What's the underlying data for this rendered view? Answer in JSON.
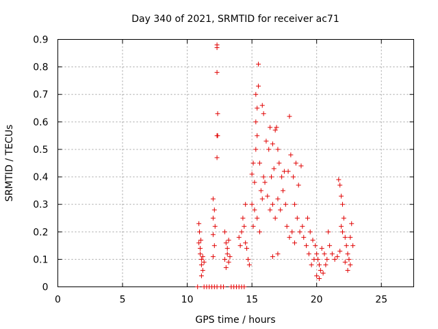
{
  "chart_data": {
    "type": "scatter",
    "title": "Day 340 of 2021, SRMTID for receiver ac71",
    "xlabel": "GPS time / hours",
    "ylabel": "SRMTID / TECUs",
    "xlim": [
      0,
      27.5
    ],
    "ylim": [
      0,
      0.9
    ],
    "xticks": [
      "0",
      "5",
      "10",
      "15",
      "20",
      "25"
    ],
    "yticks": [
      "0",
      "0.1",
      "0.2",
      "0.3",
      "0.4",
      "0.5",
      "0.6",
      "0.7",
      "0.8",
      "0.9"
    ],
    "marker": "plus",
    "marker_color": "#e00000",
    "grid": true,
    "series": [
      {
        "name": "SRMTID",
        "points": [
          [
            10.8,
            0
          ],
          [
            11.3,
            0
          ],
          [
            11.5,
            0
          ],
          [
            11.7,
            0
          ],
          [
            11.9,
            0
          ],
          [
            12.1,
            0
          ],
          [
            12.3,
            0
          ],
          [
            12.6,
            0
          ],
          [
            12.8,
            0
          ],
          [
            13.4,
            0
          ],
          [
            13.6,
            0
          ],
          [
            13.8,
            0
          ],
          [
            14.0,
            0
          ],
          [
            14.2,
            0
          ],
          [
            14.4,
            0
          ],
          [
            10.9,
            0.23
          ],
          [
            10.9,
            0.16
          ],
          [
            11.0,
            0.14
          ],
          [
            11.0,
            0.12
          ],
          [
            11.1,
            0.1
          ],
          [
            11.1,
            0.08
          ],
          [
            11.2,
            0.06
          ],
          [
            11.2,
            0.11
          ],
          [
            11.3,
            0.09
          ],
          [
            11.1,
            0.04
          ],
          [
            10.95,
            0.2
          ],
          [
            11.05,
            0.17
          ],
          [
            12.0,
            0.32
          ],
          [
            12.1,
            0.28
          ],
          [
            12.0,
            0.25
          ],
          [
            12.15,
            0.22
          ],
          [
            12.0,
            0.19
          ],
          [
            12.1,
            0.15
          ],
          [
            12.0,
            0.11
          ],
          [
            12.3,
            0.88
          ],
          [
            12.3,
            0.87
          ],
          [
            12.3,
            0.78
          ],
          [
            12.35,
            0.63
          ],
          [
            12.3,
            0.55
          ],
          [
            12.35,
            0.55
          ],
          [
            12.3,
            0.47
          ],
          [
            12.9,
            0.2
          ],
          [
            13.0,
            0.16
          ],
          [
            13.1,
            0.12
          ],
          [
            12.9,
            0.1
          ],
          [
            13.2,
            0.09
          ],
          [
            13.0,
            0.07
          ],
          [
            13.3,
            0.11
          ],
          [
            13.1,
            0.14
          ],
          [
            13.2,
            0.17
          ],
          [
            14.0,
            0.18
          ],
          [
            14.1,
            0.15
          ],
          [
            14.2,
            0.2
          ],
          [
            14.3,
            0.25
          ],
          [
            14.4,
            0.22
          ],
          [
            14.5,
            0.3
          ],
          [
            14.6,
            0.14
          ],
          [
            14.7,
            0.1
          ],
          [
            14.8,
            0.08
          ],
          [
            14.5,
            0.16
          ],
          [
            15.0,
            0.41
          ],
          [
            15.1,
            0.45
          ],
          [
            15.2,
            0.38
          ],
          [
            15.3,
            0.5
          ],
          [
            15.4,
            0.55
          ],
          [
            15.3,
            0.6
          ],
          [
            15.4,
            0.65
          ],
          [
            15.5,
            0.73
          ],
          [
            15.5,
            0.81
          ],
          [
            15.3,
            0.7
          ],
          [
            15.6,
            0.45
          ],
          [
            15.7,
            0.35
          ],
          [
            15.0,
            0.3
          ],
          [
            15.2,
            0.28
          ],
          [
            15.1,
            0.22
          ],
          [
            15.4,
            0.25
          ],
          [
            15.6,
            0.2
          ],
          [
            15.8,
            0.32
          ],
          [
            15.9,
            0.4
          ],
          [
            16.0,
            0.38
          ],
          [
            15.8,
            0.66
          ],
          [
            15.9,
            0.63
          ],
          [
            16.1,
            0.53
          ],
          [
            16.3,
            0.5
          ],
          [
            16.4,
            0.58
          ],
          [
            16.6,
            0.52
          ],
          [
            16.8,
            0.57
          ],
          [
            16.9,
            0.58
          ],
          [
            17.0,
            0.5
          ],
          [
            17.1,
            0.45
          ],
          [
            16.7,
            0.43
          ],
          [
            16.5,
            0.4
          ],
          [
            16.2,
            0.33
          ],
          [
            16.4,
            0.28
          ],
          [
            16.6,
            0.3
          ],
          [
            16.8,
            0.25
          ],
          [
            17.0,
            0.32
          ],
          [
            17.2,
            0.28
          ],
          [
            17.4,
            0.35
          ],
          [
            17.6,
            0.3
          ],
          [
            17.3,
            0.4
          ],
          [
            17.5,
            0.42
          ],
          [
            17.8,
            0.42
          ],
          [
            17.9,
            0.62
          ],
          [
            18.0,
            0.48
          ],
          [
            18.2,
            0.4
          ],
          [
            18.4,
            0.45
          ],
          [
            18.6,
            0.37
          ],
          [
            18.8,
            0.44
          ],
          [
            18.3,
            0.3
          ],
          [
            18.5,
            0.25
          ],
          [
            18.7,
            0.2
          ],
          [
            18.9,
            0.22
          ],
          [
            19.0,
            0.18
          ],
          [
            19.2,
            0.15
          ],
          [
            17.7,
            0.22
          ],
          [
            17.9,
            0.18
          ],
          [
            18.1,
            0.2
          ],
          [
            18.3,
            0.16
          ],
          [
            17.0,
            0.12
          ],
          [
            16.6,
            0.11
          ],
          [
            19.3,
            0.25
          ],
          [
            19.5,
            0.2
          ],
          [
            19.7,
            0.17
          ],
          [
            19.9,
            0.15
          ],
          [
            20.0,
            0.12
          ],
          [
            20.1,
            0.1
          ],
          [
            20.2,
            0.08
          ],
          [
            20.3,
            0.06
          ],
          [
            20.0,
            0.04
          ],
          [
            20.2,
            0.03
          ],
          [
            19.8,
            0.1
          ],
          [
            19.6,
            0.08
          ],
          [
            19.4,
            0.12
          ],
          [
            20.4,
            0.14
          ],
          [
            20.6,
            0.12
          ],
          [
            20.8,
            0.1
          ],
          [
            20.9,
            0.2
          ],
          [
            21.0,
            0.15
          ],
          [
            21.2,
            0.12
          ],
          [
            21.4,
            0.1
          ],
          [
            21.6,
            0.11
          ],
          [
            21.8,
            0.13
          ],
          [
            20.5,
            0.05
          ],
          [
            20.7,
            0.08
          ],
          [
            21.7,
            0.39
          ],
          [
            21.8,
            0.37
          ],
          [
            21.9,
            0.33
          ],
          [
            22.0,
            0.3
          ],
          [
            22.1,
            0.25
          ],
          [
            22.0,
            0.2
          ],
          [
            21.9,
            0.22
          ],
          [
            22.2,
            0.18
          ],
          [
            22.3,
            0.15
          ],
          [
            22.4,
            0.12
          ],
          [
            22.5,
            0.1
          ],
          [
            22.6,
            0.08
          ],
          [
            22.7,
            0.23
          ],
          [
            22.8,
            0.15
          ],
          [
            22.6,
            0.18
          ],
          [
            22.4,
            0.06
          ],
          [
            22.2,
            0.09
          ]
        ]
      }
    ]
  }
}
